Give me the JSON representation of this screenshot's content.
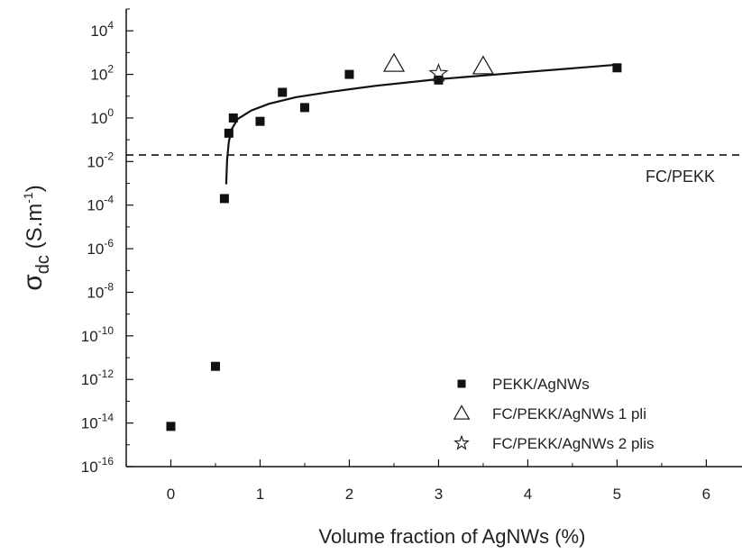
{
  "chart_data": {
    "type": "scatter",
    "xlabel": "Volume fraction of AgNWs (%)",
    "ylabel": {
      "main": "σ",
      "sub": "dc",
      "unit": " (S.m",
      "sup": "-1",
      "close": ")"
    },
    "xlim": [
      -0.5,
      6.4
    ],
    "ylim_exp": [
      -16,
      5
    ],
    "y_scale": "log",
    "x_ticks": [
      0,
      1,
      2,
      3,
      4,
      5,
      6
    ],
    "y_tick_exponents": [
      -16,
      -14,
      -12,
      -10,
      -8,
      -6,
      -4,
      -2,
      0,
      2,
      4
    ],
    "series": [
      {
        "name": "PEKK/AgNWs",
        "marker": "filled-square",
        "points": [
          {
            "x": 0,
            "y": 7e-15
          },
          {
            "x": 0.5,
            "y": 4e-12
          },
          {
            "x": 0.6,
            "y": 0.0002
          },
          {
            "x": 0.65,
            "y": 0.2
          },
          {
            "x": 0.7,
            "y": 1
          },
          {
            "x": 1.0,
            "y": 0.7
          },
          {
            "x": 1.25,
            "y": 15
          },
          {
            "x": 1.5,
            "y": 3
          },
          {
            "x": 2.0,
            "y": 100
          },
          {
            "x": 3.0,
            "y": 55
          },
          {
            "x": 5.0,
            "y": 200
          }
        ]
      },
      {
        "name": "FC/PEKK/AgNWs 1 pli",
        "marker": "open-triangle",
        "points": [
          {
            "x": 2.5,
            "y": 300
          },
          {
            "x": 3.5,
            "y": 230
          }
        ]
      },
      {
        "name": "FC/PEKK/AgNWs 2 plis",
        "marker": "open-star",
        "points": [
          {
            "x": 3.0,
            "y": 110
          }
        ]
      }
    ],
    "fit_curve": {
      "points": [
        {
          "x": 0.62,
          "y": 0.0009
        },
        {
          "x": 0.63,
          "y": 0.012
        },
        {
          "x": 0.65,
          "y": 0.08
        },
        {
          "x": 0.68,
          "y": 0.3
        },
        {
          "x": 0.75,
          "y": 0.9
        },
        {
          "x": 0.9,
          "y": 2.2
        },
        {
          "x": 1.1,
          "y": 4.5
        },
        {
          "x": 1.4,
          "y": 9
        },
        {
          "x": 1.8,
          "y": 16
        },
        {
          "x": 2.3,
          "y": 30
        },
        {
          "x": 3.0,
          "y": 60
        },
        {
          "x": 4.0,
          "y": 130
        },
        {
          "x": 5.0,
          "y": 280
        }
      ]
    },
    "reference_line": {
      "label": "FC/PEKK",
      "y": 0.02,
      "style": "dashed"
    },
    "legend_position": "bottom-right"
  }
}
